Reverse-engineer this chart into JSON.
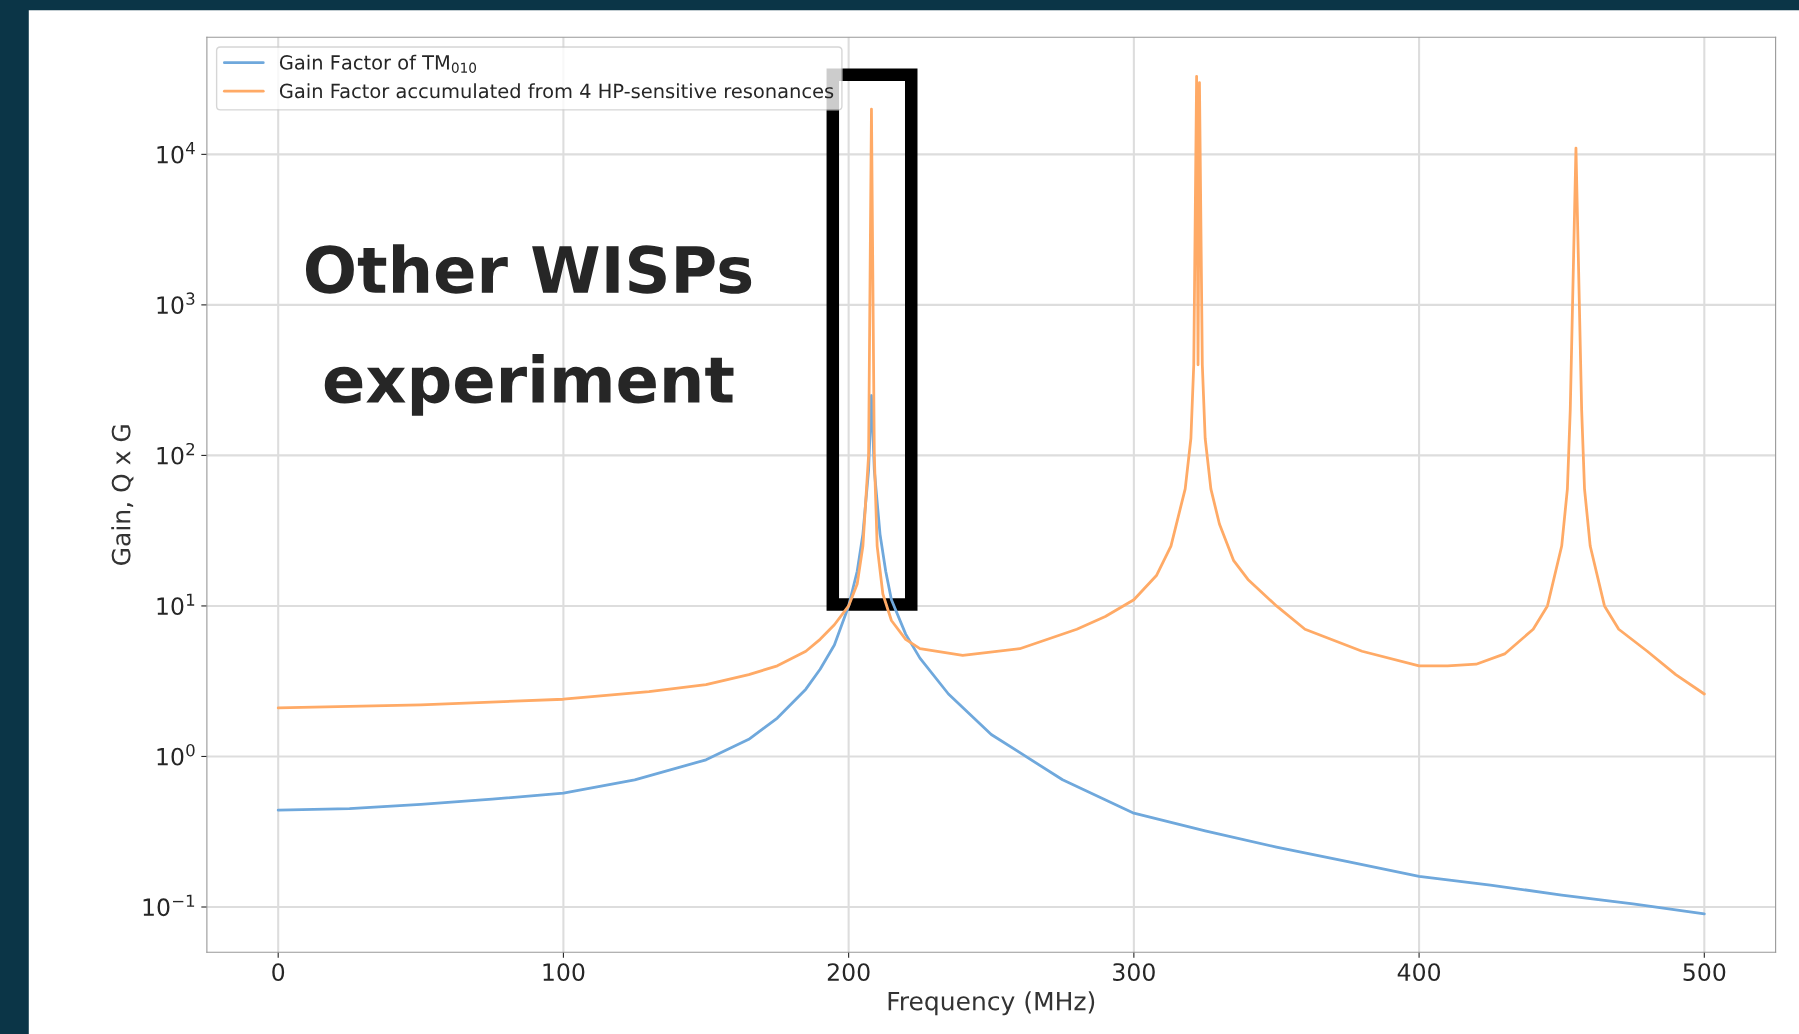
{
  "chart_data": {
    "type": "line",
    "xlabel": "Frequency (MHz)",
    "ylabel": "Gain, Q x G",
    "log": "y",
    "grid": true,
    "legend": "top left",
    "xlim": [
      -25,
      525
    ],
    "xticks": [
      0,
      100,
      200,
      300,
      400,
      500
    ],
    "ylim": [
      0.05,
      60000
    ],
    "yticks": [
      {
        "value": 0.1,
        "label": "10$^{−1}$"
      },
      {
        "value": 1,
        "label": "10$^{0}$"
      },
      {
        "value": 10,
        "label": "10$^{1}$"
      },
      {
        "value": 100,
        "label": "10$^{2}$"
      },
      {
        "value": 1000,
        "label": "10$^{3}$"
      },
      {
        "value": 10000,
        "label": "10$^{4}$"
      }
    ],
    "annotations": [
      "Other WISPs",
      "experiment"
    ],
    "series": [
      {
        "name": "Gain Factor of TM$_{010}$",
        "color": "#6fa8dc",
        "x": [
          0,
          25,
          50,
          75,
          100,
          125,
          150,
          165,
          175,
          185,
          190,
          195,
          200,
          203,
          205,
          207,
          208,
          209,
          211,
          213,
          215,
          220,
          225,
          235,
          250,
          275,
          300,
          325,
          350,
          375,
          400,
          425,
          450,
          475,
          500
        ],
        "values": [
          0.44,
          0.45,
          0.48,
          0.52,
          0.57,
          0.7,
          0.95,
          1.3,
          1.8,
          2.8,
          3.8,
          5.5,
          10,
          17,
          30,
          80,
          250,
          80,
          30,
          17,
          11,
          6.5,
          4.5,
          2.6,
          1.4,
          0.7,
          0.42,
          0.32,
          0.25,
          0.2,
          0.16,
          0.14,
          0.12,
          0.105,
          0.09
        ]
      },
      {
        "name": "Gain Factor accumulated from 4 HP-sensitive resonances",
        "color": "#ffaa66",
        "x": [
          0,
          50,
          100,
          130,
          150,
          165,
          175,
          185,
          190,
          195,
          200,
          203,
          205,
          207,
          208,
          209,
          210,
          212,
          215,
          220,
          225,
          240,
          260,
          280,
          290,
          300,
          308,
          313,
          318,
          320,
          321,
          322,
          322.5,
          323,
          324,
          325,
          327,
          330,
          335,
          340,
          350,
          360,
          380,
          400,
          410,
          420,
          430,
          440,
          445,
          450,
          452,
          453,
          455,
          457,
          458,
          460,
          465,
          470,
          480,
          490,
          500
        ],
        "values": [
          2.1,
          2.2,
          2.4,
          2.7,
          3,
          3.5,
          4,
          5,
          6,
          7.5,
          10,
          14,
          25,
          100,
          20000,
          100,
          25,
          12,
          8,
          6,
          5.2,
          4.7,
          5.2,
          7,
          8.5,
          11,
          16,
          25,
          60,
          130,
          400,
          33000,
          400,
          30000,
          400,
          130,
          60,
          35,
          20,
          15,
          10,
          7,
          5,
          4,
          4,
          4.1,
          4.8,
          7,
          10,
          25,
          60,
          200,
          11000,
          200,
          60,
          25,
          10,
          7,
          5,
          3.5,
          2.6
        ]
      }
    ]
  }
}
